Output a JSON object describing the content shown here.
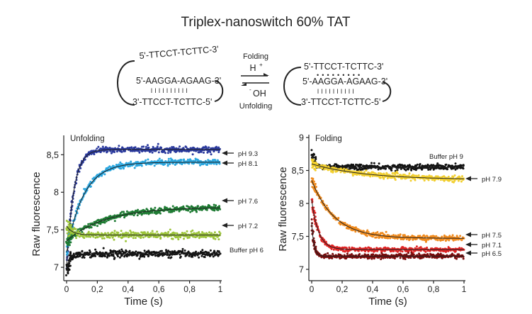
{
  "figure": {
    "title": "Triplex-nanoswitch 60% TAT"
  },
  "scheme": {
    "left": {
      "top_strand": "5'-TTCCT-TCTTC-3'",
      "mid_strand": "5'-AAGGA-AGAAG-3'",
      "bottom_strand": "3'-TTCCT-TCTTC-5'",
      "bonds": "l l l l l l l l l l"
    },
    "arrows": {
      "folding_label": "Folding",
      "folding_reagent": "H",
      "folding_reagent_sup": "+",
      "unfolding_reagent": "OH",
      "unfolding_reagent_sup": "-",
      "unfolding_label": "Unfolding"
    },
    "right": {
      "top_strand": "5'-TTCCT-TCTTC-3'",
      "hoogsteen": "• • • • • • • • •",
      "mid_strand": "5'-AAGGA-AGAAG-3'",
      "bottom_strand": "3'-TTCCT-TCTTC-5'",
      "bonds": "l l l l l l l l l l"
    }
  },
  "chart_data": [
    {
      "type": "scatter",
      "title": "Unfolding",
      "xlabel": "Time (s)",
      "ylabel": "Raw fluorescence",
      "xlim": [
        0,
        1
      ],
      "ylim": [
        6.85,
        8.72
      ],
      "xticks": [
        "0",
        "0,2",
        "0,4",
        "0,6",
        "0,8",
        "1"
      ],
      "yticks": [
        "7",
        "7,5",
        "8",
        "8,5"
      ],
      "series": [
        {
          "name": "pH 9.3",
          "color": "#2b3a9e",
          "start": 7.0,
          "plateau": 8.57,
          "tau": 0.045,
          "noise": 0.035
        },
        {
          "name": "pH 8.1",
          "color": "#2aa6df",
          "start": 7.2,
          "plateau": 8.4,
          "tau": 0.11,
          "noise": 0.035
        },
        {
          "name": "pH 7.6",
          "color": "#1e7b33",
          "start": 7.35,
          "plateau": 7.8,
          "tau": 0.25,
          "noise": 0.035
        },
        {
          "name": "pH 7.2",
          "color": "#9cc43a",
          "start": 7.55,
          "plateau": 7.43,
          "tau": 0.04,
          "noise": 0.04
        },
        {
          "name": "Buffer pH 6",
          "color": "#111111",
          "start": 6.95,
          "plateau": 7.18,
          "tau": 0.02,
          "noise": 0.04
        }
      ]
    },
    {
      "type": "scatter",
      "title": "Folding",
      "xlabel": "Time (s)",
      "ylabel": "Raw fluorescence",
      "xlim": [
        0,
        1
      ],
      "ylim": [
        7.0,
        9.0
      ],
      "xticks": [
        "0",
        "0,2",
        "0,4",
        "0,6",
        "0,8",
        "1"
      ],
      "yticks": [
        "7",
        "7,5",
        "8",
        "8,5",
        "9"
      ],
      "series": [
        {
          "name": "Buffer pH 9",
          "color": "#111111",
          "start": 8.75,
          "plateau": 8.55,
          "tau": 0.02,
          "noise": 0.04
        },
        {
          "name": "pH 7.9",
          "color": "#f2cf2e",
          "start": 8.6,
          "plateau": 8.36,
          "tau": 0.35,
          "noise": 0.035
        },
        {
          "name": "pH 7.5",
          "color": "#f08a1c",
          "start": 8.35,
          "plateau": 7.47,
          "tau": 0.15,
          "noise": 0.035
        },
        {
          "name": "pH 7.1",
          "color": "#e02424",
          "start": 8.05,
          "plateau": 7.3,
          "tau": 0.045,
          "noise": 0.03
        },
        {
          "name": "pH 6.5",
          "color": "#7a0c0c",
          "start": 7.7,
          "plateau": 7.2,
          "tau": 0.015,
          "noise": 0.03
        }
      ]
    }
  ]
}
